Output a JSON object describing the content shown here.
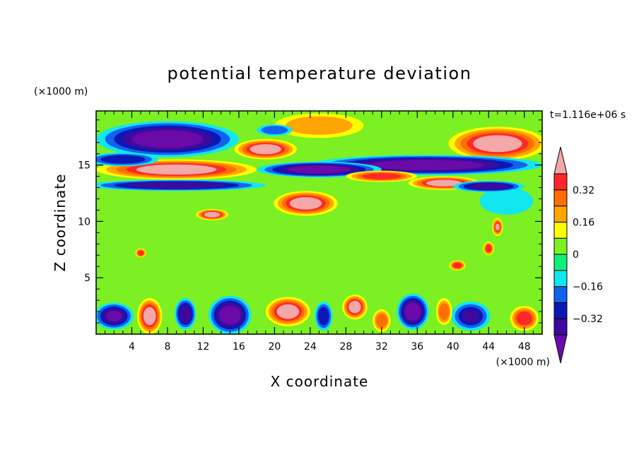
{
  "chart_data": {
    "type": "heatmap",
    "title": "potential temperature deviation",
    "xlabel": "X coordinate",
    "ylabel": "Z coordinate",
    "x_unit": "(×1000 m)",
    "y_unit": "(×1000 m)",
    "time_label": "t=1.116e+06 s",
    "xlim": [
      0,
      50
    ],
    "ylim": [
      0,
      19.8
    ],
    "x_ticks": [
      {
        "value": 4,
        "label": "4"
      },
      {
        "value": 8,
        "label": "8"
      },
      {
        "value": 12,
        "label": "12"
      },
      {
        "value": 16,
        "label": "16"
      },
      {
        "value": 20,
        "label": "20"
      },
      {
        "value": 24,
        "label": "24"
      },
      {
        "value": 28,
        "label": "28"
      },
      {
        "value": 32,
        "label": "32"
      },
      {
        "value": 36,
        "label": "36"
      },
      {
        "value": 40,
        "label": "40"
      },
      {
        "value": 44,
        "label": "44"
      },
      {
        "value": 48,
        "label": "48"
      }
    ],
    "y_ticks": [
      {
        "value": 5,
        "label": "5"
      },
      {
        "value": 10,
        "label": "10"
      },
      {
        "value": 15,
        "label": "15"
      }
    ],
    "colorbar": {
      "levels": [
        -0.48,
        -0.4,
        -0.32,
        -0.24,
        -0.16,
        -0.08,
        0,
        0.08,
        0.16,
        0.24,
        0.32,
        0.4
      ],
      "colors": [
        "#6a0aa8",
        "#3e0a9e",
        "#0c18b4",
        "#1262f0",
        "#12e6ee",
        "#0ff07a",
        "#7cf022",
        "#ffff00",
        "#ffa500",
        "#ff6f00",
        "#ff2828",
        "#f4a8a8"
      ],
      "tick_labels": [
        {
          "value": 0.32,
          "label": "0.32"
        },
        {
          "value": 0.16,
          "label": "0.16"
        },
        {
          "value": 0,
          "label": "0"
        },
        {
          "value": -0.16,
          "label": "−0.16"
        },
        {
          "value": -0.32,
          "label": "−0.32"
        }
      ]
    },
    "features": [
      {
        "x": 25,
        "z": 8.5,
        "rx": 26,
        "rz": 4.2,
        "value": 0.03
      },
      {
        "x": 8,
        "z": 11.2,
        "rx": 5,
        "rz": 0.8,
        "value": 0.06
      },
      {
        "x": 36,
        "z": 9.6,
        "rx": 6,
        "rz": 1.5,
        "value": 0.04
      },
      {
        "x": 14,
        "z": 5.8,
        "rx": 7,
        "rz": 1.2,
        "value": 0.04
      },
      {
        "x": 46,
        "z": 11.8,
        "rx": 3,
        "rz": 1.2,
        "value": -0.1
      },
      {
        "x": 13,
        "z": 10.6,
        "rx": 1.8,
        "rz": 0.5,
        "value": 0.42
      },
      {
        "x": 45,
        "z": 9.5,
        "rx": 0.6,
        "rz": 0.8,
        "value": 0.4
      },
      {
        "x": 44,
        "z": 7.6,
        "rx": 0.6,
        "rz": 0.6,
        "value": 0.35
      },
      {
        "x": 40.5,
        "z": 6.1,
        "rx": 0.9,
        "rz": 0.45,
        "value": 0.38
      },
      {
        "x": 5,
        "z": 7.2,
        "rx": 0.6,
        "rz": 0.4,
        "value": 0.36
      },
      {
        "x": 8,
        "z": 17.3,
        "rx": 8,
        "rz": 1.6,
        "value": -0.46
      },
      {
        "x": 45,
        "z": 16.9,
        "rx": 5.5,
        "rz": 1.5,
        "value": 0.43
      },
      {
        "x": 37,
        "z": 15,
        "rx": 13,
        "rz": 0.9,
        "value": -0.44
      },
      {
        "x": 9,
        "z": 14.6,
        "rx": 9,
        "rz": 0.9,
        "value": 0.45
      },
      {
        "x": 9,
        "z": 13.2,
        "rx": 10,
        "rz": 0.5,
        "value": -0.38
      },
      {
        "x": 19,
        "z": 16.4,
        "rx": 3.5,
        "rz": 0.9,
        "value": 0.43
      },
      {
        "x": 23.5,
        "z": 11.6,
        "rx": 3.6,
        "rz": 1.1,
        "value": 0.44
      },
      {
        "x": 25,
        "z": 14.6,
        "rx": 7,
        "rz": 0.7,
        "value": -0.42
      },
      {
        "x": 25,
        "z": 18.5,
        "rx": 5,
        "rz": 1.1,
        "value": 0.2
      },
      {
        "x": 20,
        "z": 18.1,
        "rx": 2,
        "rz": 0.5,
        "value": -0.2
      },
      {
        "x": 39,
        "z": 13.4,
        "rx": 4,
        "rz": 0.6,
        "value": 0.42
      },
      {
        "x": 44,
        "z": 13.1,
        "rx": 4,
        "rz": 0.5,
        "value": -0.35
      },
      {
        "x": 32,
        "z": 14,
        "rx": 4,
        "rz": 0.5,
        "value": 0.35
      },
      {
        "x": 3,
        "z": 15.5,
        "rx": 4,
        "rz": 0.6,
        "value": -0.3
      },
      {
        "x": 6,
        "z": 1.6,
        "rx": 1.4,
        "rz": 1.6,
        "value": 0.45
      },
      {
        "x": 21.5,
        "z": 2,
        "rx": 2.5,
        "rz": 1.3,
        "value": 0.44
      },
      {
        "x": 29,
        "z": 2.4,
        "rx": 1.4,
        "rz": 1.1,
        "value": 0.43
      },
      {
        "x": 15,
        "z": 1.7,
        "rx": 2.4,
        "rz": 1.7,
        "value": -0.44
      },
      {
        "x": 35.5,
        "z": 2,
        "rx": 1.8,
        "rz": 1.6,
        "value": -0.42
      },
      {
        "x": 2,
        "z": 1.6,
        "rx": 2.2,
        "rz": 1.2,
        "value": -0.4
      },
      {
        "x": 42,
        "z": 1.6,
        "rx": 2.2,
        "rz": 1.3,
        "value": -0.32
      },
      {
        "x": 10,
        "z": 1.8,
        "rx": 1.2,
        "rz": 1.4,
        "value": -0.36
      },
      {
        "x": 48,
        "z": 1.4,
        "rx": 1.6,
        "rz": 1.1,
        "value": 0.34
      },
      {
        "x": 32,
        "z": 1.2,
        "rx": 1,
        "rz": 1,
        "value": 0.3
      },
      {
        "x": 25.5,
        "z": 1.6,
        "rx": 1,
        "rz": 1.3,
        "value": -0.3
      },
      {
        "x": 39,
        "z": 2,
        "rx": 0.9,
        "rz": 1.2,
        "value": 0.25
      }
    ]
  }
}
